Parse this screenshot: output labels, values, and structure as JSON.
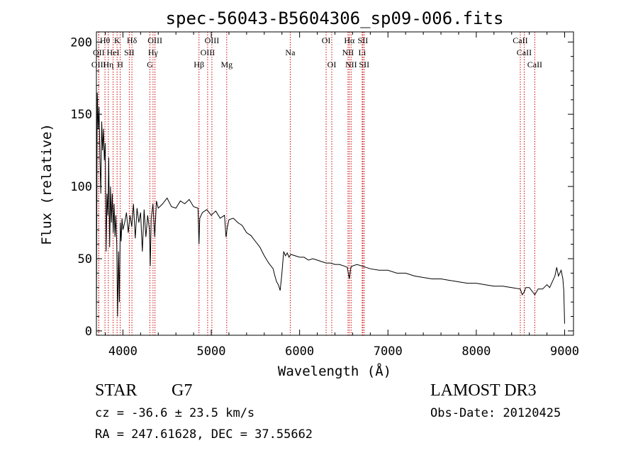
{
  "chart_data": {
    "type": "line",
    "title": "spec-56043-B5604306_sp09-006.fits",
    "xlabel": "Wavelength (Å)",
    "ylabel": "Flux (relative)",
    "xlim": [
      3700,
      9100
    ],
    "ylim": [
      -3,
      207
    ],
    "xticks": [
      4000,
      5000,
      6000,
      7000,
      8000,
      9000
    ],
    "yticks": [
      0,
      50,
      100,
      150,
      200
    ],
    "grid": false,
    "series": [
      {
        "name": "flux",
        "color": "#000000",
        "x": [
          3700,
          3710,
          3720,
          3730,
          3740,
          3750,
          3760,
          3770,
          3780,
          3790,
          3800,
          3810,
          3820,
          3830,
          3840,
          3850,
          3860,
          3870,
          3880,
          3890,
          3900,
          3910,
          3920,
          3930,
          3940,
          3950,
          3960,
          3970,
          3980,
          3990,
          4000,
          4020,
          4040,
          4060,
          4080,
          4100,
          4120,
          4140,
          4160,
          4180,
          4200,
          4220,
          4240,
          4260,
          4280,
          4300,
          4310,
          4320,
          4340,
          4360,
          4380,
          4400,
          4450,
          4500,
          4550,
          4600,
          4650,
          4700,
          4750,
          4800,
          4850,
          4861,
          4870,
          4900,
          4950,
          5000,
          5050,
          5100,
          5150,
          5167,
          5183,
          5200,
          5250,
          5300,
          5350,
          5400,
          5450,
          5500,
          5550,
          5600,
          5650,
          5700,
          5720,
          5740,
          5760,
          5780,
          5800,
          5820,
          5840,
          5860,
          5880,
          5900,
          5950,
          6000,
          6050,
          6100,
          6150,
          6200,
          6250,
          6300,
          6350,
          6400,
          6450,
          6500,
          6540,
          6563,
          6580,
          6600,
          6650,
          6700,
          6750,
          6800,
          6900,
          7000,
          7100,
          7200,
          7300,
          7400,
          7500,
          7600,
          7700,
          7800,
          7900,
          8000,
          8100,
          8200,
          8300,
          8400,
          8498,
          8520,
          8542,
          8560,
          8600,
          8662,
          8700,
          8750,
          8800,
          8830,
          8860,
          8890,
          8910,
          8930,
          8960,
          8980,
          8990,
          9000
        ],
        "values": [
          10,
          165,
          140,
          155,
          120,
          95,
          145,
          125,
          140,
          118,
          130,
          55,
          95,
          80,
          120,
          58,
          100,
          75,
          95,
          68,
          88,
          65,
          80,
          60,
          10,
          55,
          20,
          75,
          62,
          78,
          70,
          75,
          82,
          68,
          80,
          72,
          88,
          64,
          85,
          75,
          82,
          55,
          84,
          65,
          80,
          70,
          45,
          78,
          88,
          65,
          90,
          85,
          88,
          92,
          86,
          85,
          90,
          88,
          91,
          86,
          85,
          60,
          78,
          82,
          84,
          80,
          83,
          78,
          80,
          65,
          72,
          77,
          78,
          75,
          73,
          68,
          66,
          62,
          58,
          52,
          47,
          43,
          38,
          34,
          32,
          28,
          40,
          55,
          52,
          54,
          51,
          53,
          52,
          51,
          51,
          49,
          50,
          49,
          48,
          47,
          47,
          46,
          46,
          45,
          44,
          36,
          44,
          45,
          46,
          45,
          44,
          43,
          42,
          42,
          40,
          40,
          38,
          37,
          36,
          36,
          35,
          34,
          33,
          33,
          32,
          31,
          31,
          30,
          29,
          25,
          27,
          30,
          30,
          25,
          29,
          29,
          32,
          30,
          34,
          38,
          44,
          38,
          42,
          36,
          28,
          5
        ]
      }
    ],
    "lines": [
      {
        "label": "Hθ",
        "wl": 3797,
        "row": 0
      },
      {
        "label": "OII",
        "wl": 3727,
        "row": 1
      },
      {
        "label": "OIII",
        "wl": 3726,
        "row": 2
      },
      {
        "label": "Hη",
        "wl": 3835,
        "row": 2
      },
      {
        "label": "HeI",
        "wl": 3889,
        "row": 1
      },
      {
        "label": "K",
        "wl": 3934,
        "row": 0
      },
      {
        "label": "H",
        "wl": 3969,
        "row": 2
      },
      {
        "label": "SII",
        "wl": 4072,
        "row": 1
      },
      {
        "label": "Hδ",
        "wl": 4102,
        "row": 0
      },
      {
        "label": "G",
        "wl": 4305,
        "row": 2
      },
      {
        "label": "Hγ",
        "wl": 4341,
        "row": 1
      },
      {
        "label": "OIII",
        "wl": 4363,
        "row": 0
      },
      {
        "label": "Hβ",
        "wl": 4861,
        "row": 2
      },
      {
        "label": "OIII",
        "wl": 4959,
        "row": 1
      },
      {
        "label": "OIII",
        "wl": 5007,
        "row": 0
      },
      {
        "label": "Mg",
        "wl": 5175,
        "row": 2
      },
      {
        "label": "Na",
        "wl": 5894,
        "row": 1
      },
      {
        "label": "OI",
        "wl": 6300,
        "row": 0
      },
      {
        "label": "OI",
        "wl": 6364,
        "row": 2
      },
      {
        "label": "NII",
        "wl": 6548,
        "row": 1
      },
      {
        "label": "Hα",
        "wl": 6563,
        "row": 0
      },
      {
        "label": "NII",
        "wl": 6583,
        "row": 2
      },
      {
        "label": "SII",
        "wl": 6716,
        "row": 0
      },
      {
        "label": "Li",
        "wl": 6708,
        "row": 1
      },
      {
        "label": "SII",
        "wl": 6731,
        "row": 2
      },
      {
        "label": "CaII",
        "wl": 8498,
        "row": 0
      },
      {
        "label": "CaII",
        "wl": 8542,
        "row": 1
      },
      {
        "label": "CaII",
        "wl": 8662,
        "row": 2
      }
    ]
  },
  "info": {
    "classification": "STAR",
    "subclass": "G7",
    "cz": "cz = -36.6 ± 23.5 km/s",
    "coords": "RA = 247.61628, DEC =  37.55662",
    "survey": "LAMOST DR3",
    "obs_date": "Obs-Date: 20120425"
  },
  "colors": {
    "line_marker": "#cc0000",
    "spectrum": "#000000"
  }
}
